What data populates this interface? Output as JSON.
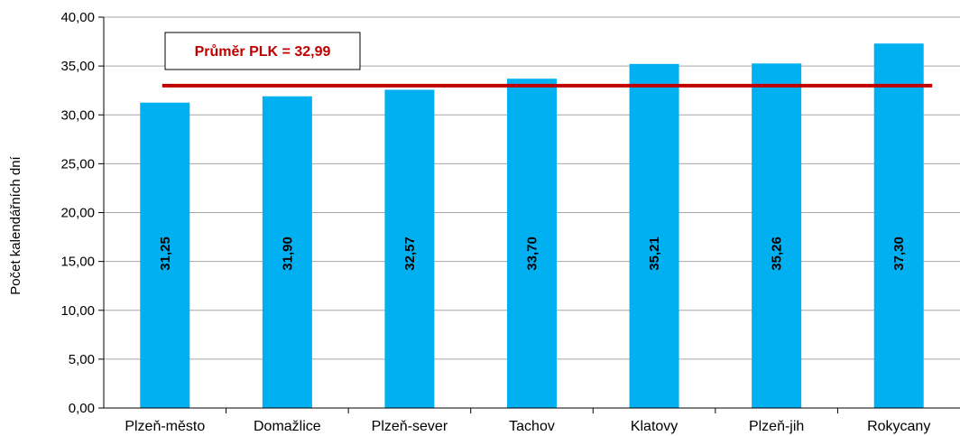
{
  "chart_data": {
    "type": "bar",
    "categories": [
      "Plzeň-město",
      "Domažlice",
      "Plzeň-sever",
      "Tachov",
      "Klatovy",
      "Plzeň-jih",
      "Rokycany"
    ],
    "values": [
      31.25,
      31.9,
      32.57,
      33.7,
      35.21,
      35.26,
      37.3
    ],
    "value_labels": [
      "31,25",
      "31,90",
      "32,57",
      "33,70",
      "35,21",
      "35,26",
      "37,30"
    ],
    "ylabel": "Počet  kalendářních dní",
    "ylim": [
      0,
      40
    ],
    "yticks": [
      0,
      5,
      10,
      15,
      20,
      25,
      30,
      35,
      40
    ],
    "ytick_labels": [
      "0,00",
      "5,00",
      "10,00",
      "15,00",
      "20,00",
      "25,00",
      "30,00",
      "35,00",
      "40,00"
    ],
    "grid": true,
    "bar_color": "#00b0f0",
    "average_line": {
      "value": 32.99,
      "label": "Průměr PLK = 32,99",
      "color": "#c00000"
    }
  }
}
